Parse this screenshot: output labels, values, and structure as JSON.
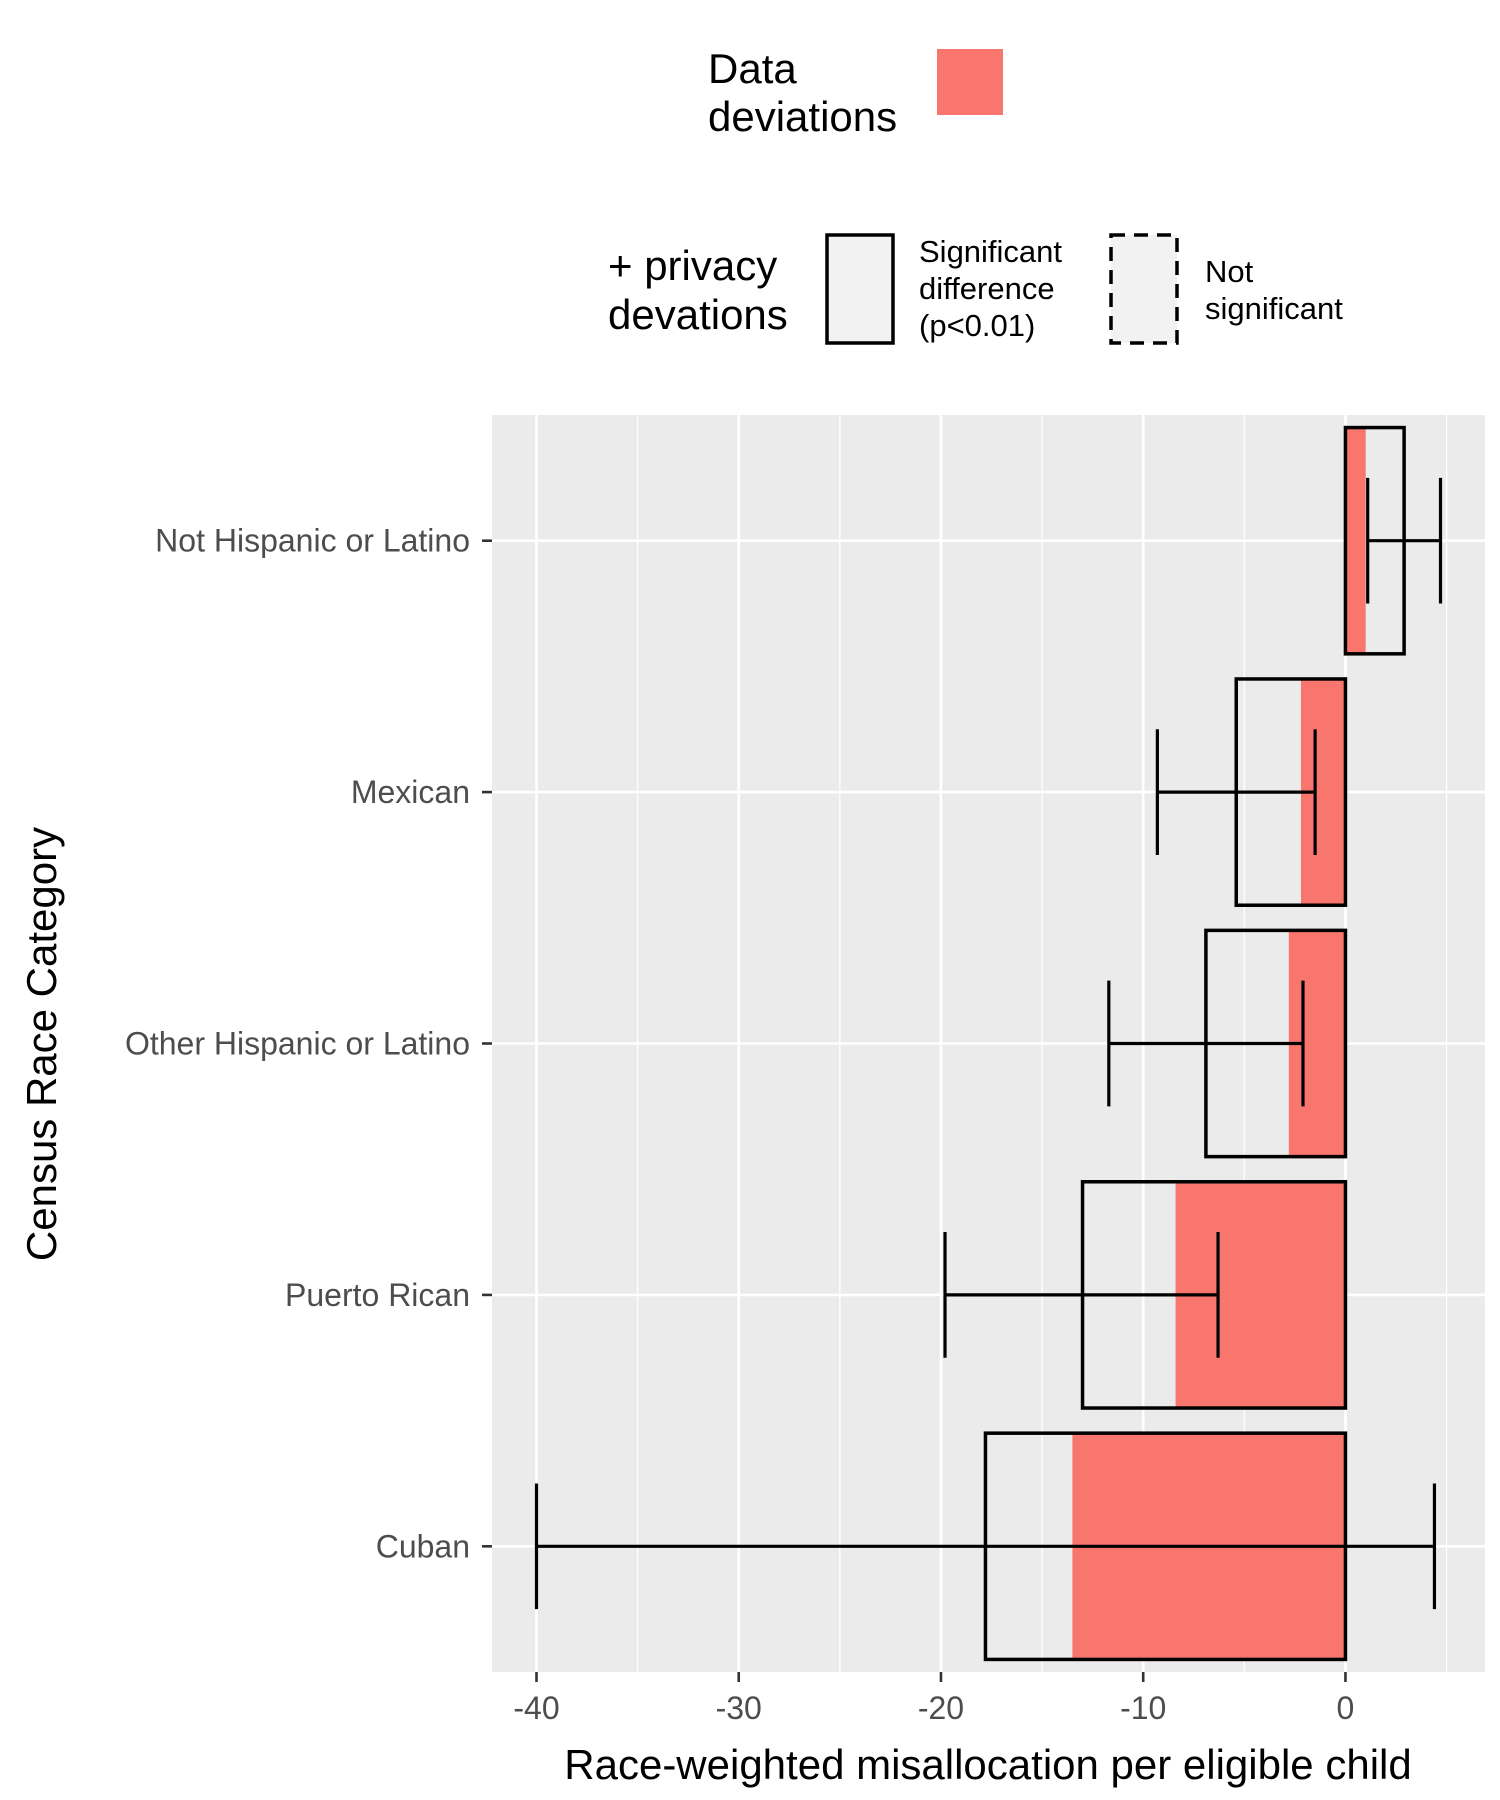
{
  "legend": {
    "data_title": [
      "Data",
      "deviations"
    ],
    "privacy_title": [
      "+ privacy",
      "devations"
    ],
    "significant_label": [
      "Significant",
      "difference",
      "(p<0.01)"
    ],
    "not_significant_label": [
      "Not",
      "significant"
    ]
  },
  "chart_data": {
    "type": "bar",
    "orientation": "horizontal",
    "categories": [
      "Not Hispanic or Latino",
      "Mexican",
      "Other Hispanic or Latino",
      "Puerto Rican",
      "Cuban"
    ],
    "series": [
      {
        "name": "Data deviations",
        "values": [
          1.0,
          -2.2,
          -2.8,
          -8.4,
          -13.5
        ]
      },
      {
        "name": "+ privacy devations",
        "values": [
          2.9,
          -5.4,
          -6.9,
          -13.0,
          -17.8
        ]
      }
    ],
    "error_bars": [
      {
        "center": 2.9,
        "low": 1.1,
        "high": 4.7
      },
      {
        "center": -5.4,
        "low": -9.3,
        "high": -1.5
      },
      {
        "center": -6.9,
        "low": -11.7,
        "high": -2.1
      },
      {
        "center": -13.0,
        "low": -19.8,
        "high": -6.3
      },
      {
        "center": -17.8,
        "low": -40.0,
        "high": 4.4
      }
    ],
    "significance": [
      "significant",
      "significant",
      "significant",
      "significant",
      "significant"
    ],
    "xlabel": "Race-weighted misallocation per eligible child",
    "ylabel": "Census Race Category",
    "xlim": [
      -42.2,
      6.9
    ],
    "xticks": [
      -40,
      -30,
      -20,
      -10,
      0
    ],
    "xtick_labels": [
      "-40",
      "-30",
      "-20",
      "-10",
      "0"
    ],
    "grid": true,
    "legend_position": "top",
    "colors": {
      "data_fill": "#F8766D",
      "privacy_fill": "#F2F2F2",
      "panel": "#EBEBEB",
      "grid": "#FFFFFF",
      "tick_text": "#4D4D4D"
    }
  }
}
